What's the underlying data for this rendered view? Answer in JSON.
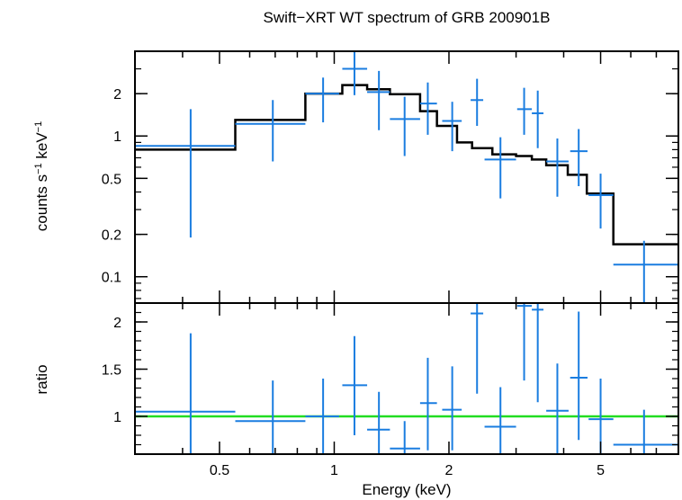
{
  "chart_data": {
    "type": "scatter",
    "title": "Swift−XRT WT spectrum of GRB 200901B",
    "xlabel": "Energy (keV)",
    "x_scale": "log",
    "xlim": [
      0.3,
      8.0
    ],
    "xticks": [
      {
        "value": 0.5,
        "label": "0.5"
      },
      {
        "value": 1,
        "label": "1"
      },
      {
        "value": 2,
        "label": "2"
      },
      {
        "value": 5,
        "label": "5"
      }
    ],
    "panels": [
      {
        "id": "spectrum",
        "ylabel_main": "counts s",
        "ylabel_sup1": "−1",
        "ylabel_mid": " keV",
        "ylabel_sup2": "−1",
        "y_scale": "log",
        "ylim": [
          0.065,
          4.0
        ],
        "yticks": [
          {
            "value": 0.1,
            "label": "0.1"
          },
          {
            "value": 0.2,
            "label": "0.2"
          },
          {
            "value": 0.5,
            "label": "0.5"
          },
          {
            "value": 1,
            "label": "1"
          },
          {
            "value": 2,
            "label": "2"
          }
        ],
        "data": {
          "color": "#1a7de0",
          "points": [
            {
              "x": 0.42,
              "xlo": 0.3,
              "xhi": 0.55,
              "y": 0.85,
              "ylo": 0.19,
              "yhi": 1.55
            },
            {
              "x": 0.69,
              "xlo": 0.55,
              "xhi": 0.84,
              "y": 1.22,
              "ylo": 0.66,
              "yhi": 1.8
            },
            {
              "x": 0.935,
              "xlo": 0.84,
              "xhi": 1.03,
              "y": 2.0,
              "ylo": 1.25,
              "yhi": 2.6
            },
            {
              "x": 1.13,
              "xlo": 1.05,
              "xhi": 1.22,
              "y": 3.0,
              "ylo": 1.95,
              "yhi": 4.0
            },
            {
              "x": 1.31,
              "xlo": 1.22,
              "xhi": 1.4,
              "y": 2.05,
              "ylo": 1.1,
              "yhi": 2.9
            },
            {
              "x": 1.53,
              "xlo": 1.4,
              "xhi": 1.68,
              "y": 1.32,
              "ylo": 0.72,
              "yhi": 1.9
            },
            {
              "x": 1.76,
              "xlo": 1.68,
              "xhi": 1.86,
              "y": 1.7,
              "ylo": 1.02,
              "yhi": 2.4
            },
            {
              "x": 2.04,
              "xlo": 1.92,
              "xhi": 2.16,
              "y": 1.28,
              "ylo": 0.78,
              "yhi": 1.75
            },
            {
              "x": 2.37,
              "xlo": 2.28,
              "xhi": 2.46,
              "y": 1.8,
              "ylo": 1.18,
              "yhi": 2.55
            },
            {
              "x": 2.73,
              "xlo": 2.48,
              "xhi": 3.0,
              "y": 0.68,
              "ylo": 0.36,
              "yhi": 0.98
            },
            {
              "x": 3.15,
              "xlo": 3.02,
              "xhi": 3.3,
              "y": 1.55,
              "ylo": 1.02,
              "yhi": 2.2
            },
            {
              "x": 3.42,
              "xlo": 3.3,
              "xhi": 3.54,
              "y": 1.45,
              "ylo": 0.82,
              "yhi": 2.1
            },
            {
              "x": 3.85,
              "xlo": 3.6,
              "xhi": 4.12,
              "y": 0.66,
              "ylo": 0.37,
              "yhi": 0.96
            },
            {
              "x": 4.38,
              "xlo": 4.16,
              "xhi": 4.62,
              "y": 0.78,
              "ylo": 0.44,
              "yhi": 1.12
            },
            {
              "x": 5.0,
              "xlo": 4.65,
              "xhi": 5.4,
              "y": 0.38,
              "ylo": 0.22,
              "yhi": 0.54
            },
            {
              "x": 6.5,
              "xlo": 5.4,
              "xhi": 8.0,
              "y": 0.122,
              "ylo": 0.065,
              "yhi": 0.18
            }
          ]
        },
        "model": {
          "color": "#000000",
          "steps": [
            {
              "x0": 0.3,
              "x1": 0.55,
              "y": 0.8
            },
            {
              "x0": 0.55,
              "x1": 0.84,
              "y": 1.3
            },
            {
              "x0": 0.84,
              "x1": 1.05,
              "y": 2.0
            },
            {
              "x0": 1.05,
              "x1": 1.22,
              "y": 2.3
            },
            {
              "x0": 1.22,
              "x1": 1.4,
              "y": 2.15
            },
            {
              "x0": 1.4,
              "x1": 1.68,
              "y": 1.98
            },
            {
              "x0": 1.68,
              "x1": 1.86,
              "y": 1.5
            },
            {
              "x0": 1.86,
              "x1": 2.1,
              "y": 1.18
            },
            {
              "x0": 2.1,
              "x1": 2.3,
              "y": 0.9
            },
            {
              "x0": 2.3,
              "x1": 2.6,
              "y": 0.82
            },
            {
              "x0": 2.6,
              "x1": 3.0,
              "y": 0.74
            },
            {
              "x0": 3.0,
              "x1": 3.3,
              "y": 0.72
            },
            {
              "x0": 3.3,
              "x1": 3.6,
              "y": 0.68
            },
            {
              "x0": 3.6,
              "x1": 4.1,
              "y": 0.62
            },
            {
              "x0": 4.1,
              "x1": 4.6,
              "y": 0.53
            },
            {
              "x0": 4.6,
              "x1": 5.4,
              "y": 0.39
            },
            {
              "x0": 5.4,
              "x1": 8.0,
              "y": 0.17
            }
          ]
        }
      },
      {
        "id": "ratio",
        "ylabel": "ratio",
        "y_scale": "linear",
        "ylim": [
          0.6,
          2.2
        ],
        "yticks": [
          {
            "value": 1,
            "label": "1"
          },
          {
            "value": 1.5,
            "label": "1.5"
          },
          {
            "value": 2,
            "label": "2"
          }
        ],
        "reference_line": {
          "y": 1.0,
          "color": "#22dd22"
        },
        "data": {
          "color": "#1a7de0",
          "points": [
            {
              "x": 0.42,
              "xlo": 0.3,
              "xhi": 0.55,
              "y": 1.05,
              "ylo": 0.6,
              "yhi": 1.88
            },
            {
              "x": 0.69,
              "xlo": 0.55,
              "xhi": 0.84,
              "y": 0.95,
              "ylo": 0.6,
              "yhi": 1.38
            },
            {
              "x": 0.935,
              "xlo": 0.84,
              "xhi": 1.03,
              "y": 1.0,
              "ylo": 0.6,
              "yhi": 1.4
            },
            {
              "x": 1.13,
              "xlo": 1.05,
              "xhi": 1.22,
              "y": 1.33,
              "ylo": 0.8,
              "yhi": 1.85
            },
            {
              "x": 1.31,
              "xlo": 1.22,
              "xhi": 1.4,
              "y": 0.86,
              "ylo": 0.6,
              "yhi": 1.26
            },
            {
              "x": 1.53,
              "xlo": 1.4,
              "xhi": 1.68,
              "y": 0.66,
              "ylo": 0.6,
              "yhi": 0.95
            },
            {
              "x": 1.76,
              "xlo": 1.68,
              "xhi": 1.86,
              "y": 1.14,
              "ylo": 0.64,
              "yhi": 1.62
            },
            {
              "x": 2.04,
              "xlo": 1.92,
              "xhi": 2.16,
              "y": 1.07,
              "ylo": 0.64,
              "yhi": 1.53
            },
            {
              "x": 2.37,
              "xlo": 2.28,
              "xhi": 2.46,
              "y": 2.09,
              "ylo": 1.24,
              "yhi": 2.2
            },
            {
              "x": 2.73,
              "xlo": 2.48,
              "xhi": 3.0,
              "y": 0.89,
              "ylo": 0.6,
              "yhi": 1.31
            },
            {
              "x": 3.15,
              "xlo": 3.02,
              "xhi": 3.3,
              "y": 2.17,
              "ylo": 1.38,
              "yhi": 2.2
            },
            {
              "x": 3.42,
              "xlo": 3.3,
              "xhi": 3.54,
              "y": 2.13,
              "ylo": 1.15,
              "yhi": 2.2
            },
            {
              "x": 3.85,
              "xlo": 3.6,
              "xhi": 4.12,
              "y": 1.06,
              "ylo": 0.6,
              "yhi": 1.56
            },
            {
              "x": 4.38,
              "xlo": 4.16,
              "xhi": 4.62,
              "y": 1.41,
              "ylo": 0.75,
              "yhi": 2.11
            },
            {
              "x": 5.0,
              "xlo": 4.65,
              "xhi": 5.4,
              "y": 0.97,
              "ylo": 0.6,
              "yhi": 1.4
            },
            {
              "x": 6.5,
              "xlo": 5.4,
              "xhi": 8.0,
              "y": 0.7,
              "ylo": 0.6,
              "yhi": 1.07
            }
          ]
        }
      }
    ]
  }
}
